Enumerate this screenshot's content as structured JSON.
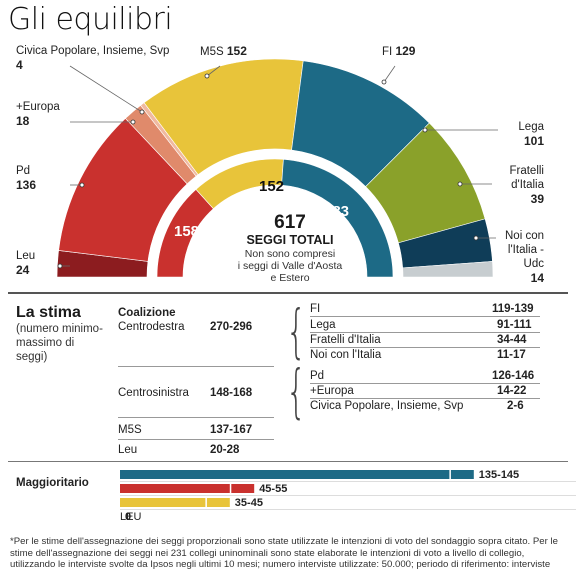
{
  "title": "Gli equilibri",
  "chart_data": [
    {
      "type": "pie",
      "subtype": "parliament-hemicycle",
      "total": 617,
      "center_label": "SEGGI TOTALI",
      "center_note": "Non sono compresi i seggi di Valle d'Aosta e Estero",
      "outer_ring": [
        {
          "name": "Leu",
          "value": 24,
          "color": "#8c1c1f"
        },
        {
          "name": "Pd",
          "value": 136,
          "color": "#c9312e"
        },
        {
          "name": "+Europa",
          "value": 18,
          "color": "#e08a6b"
        },
        {
          "name": "Civica Popolare, Insieme, Svp",
          "value": 4,
          "color": "#f0b9a0"
        },
        {
          "name": "M5S",
          "value": 152,
          "color": "#e8c43a"
        },
        {
          "name": "FI",
          "value": 129,
          "color": "#1d6a86"
        },
        {
          "name": "Lega",
          "value": 101,
          "color": "#8aa12a"
        },
        {
          "name": "Fratelli d'Italia",
          "value": 39,
          "color": "#0f3d58"
        },
        {
          "name": "Noi con l'Italia - Udc",
          "value": 14,
          "color": "#c7cdd0"
        }
      ],
      "inner_ring": [
        {
          "name": "Centrosinistra",
          "value": 158,
          "color": "#c9312e"
        },
        {
          "name": "M5S",
          "value": 152,
          "color": "#e8c43a"
        },
        {
          "name": "Centrodestra",
          "value": 283,
          "color": "#1d6a86"
        }
      ]
    },
    {
      "type": "bar",
      "title": "Maggioritario",
      "categories": [
        "Centrodestra",
        "Centrosinistra",
        "M5S",
        "LEU"
      ],
      "ranges": [
        [
          135,
          145
        ],
        [
          45,
          55
        ],
        [
          35,
          45
        ],
        [
          0,
          0
        ]
      ],
      "range_labels": [
        "135-145",
        "45-55",
        "35-45",
        "0"
      ],
      "colors": [
        "#1d6a86",
        "#c9312e",
        "#e8c43a",
        "#999999"
      ],
      "xlim": [
        0,
        150
      ]
    }
  ],
  "labels": {
    "civica_name": "Civica Popolare, Insieme, Svp",
    "civica_val": "4",
    "m5s_name": "M5S",
    "m5s_val": "152",
    "fi_name": "FI",
    "fi_val": "129",
    "europa_name": "+Europa",
    "europa_val": "18",
    "lega_name": "Lega",
    "lega_val": "101",
    "pd_name": "Pd",
    "pd_val": "136",
    "fdi_name1": "Fratelli",
    "fdi_name2": "d'Italia",
    "fdi_val": "39",
    "leu_name": "Leu",
    "leu_val": "24",
    "noi_name1": "Noi con",
    "noi_name2": "l'Italia -",
    "noi_name3": "Udc",
    "noi_val": "14",
    "inner_left": "158",
    "inner_mid": "152",
    "inner_right": "283",
    "total": "617",
    "total_label": "SEGGI TOTALI",
    "total_note1": "Non sono compresi",
    "total_note2": "i seggi di Valle d'Aosta",
    "total_note3": "e Estero"
  },
  "stima": {
    "title": "La stima",
    "subtitle": "(numero minimo-massimo di seggi)",
    "coalition_header": "Coalizione",
    "rows": [
      {
        "name": "Centrodestra",
        "range": "270-296"
      },
      {
        "name": "Centrosinistra",
        "range": "148-168"
      },
      {
        "name": "M5S",
        "range": "137-167"
      },
      {
        "name": "Leu",
        "range": "20-28"
      }
    ],
    "cdx_parties": [
      {
        "name": "FI",
        "range": "119-139"
      },
      {
        "name": "Lega",
        "range": "91-111"
      },
      {
        "name": "Fratelli d'Italia",
        "range": "34-44"
      },
      {
        "name": "Noi con l'Italia",
        "range": "11-17"
      }
    ],
    "csx_parties": [
      {
        "name": "Pd",
        "range": "126-146"
      },
      {
        "name": "+Europa",
        "range": "14-22"
      },
      {
        "name": "Civica Popolare, Insieme, Svp",
        "range": "2-6"
      }
    ]
  },
  "magg": {
    "title": "Maggioritario"
  },
  "footnote": "*Per le stime dell'assegnazione dei seggi proporzionali sono state utilizzate le intenzioni di voto del sondaggio sopra citato. Per le stime dell'assegnazione dei seggi nei 231 collegi uninominali sono state elaborate le intenzioni di voto a livello di collegio, utilizzando le interviste svolte da Ipsos negli ultimi 10 mesi; numero interviste utilizzate: 50.000; periodo di riferimento: interviste"
}
